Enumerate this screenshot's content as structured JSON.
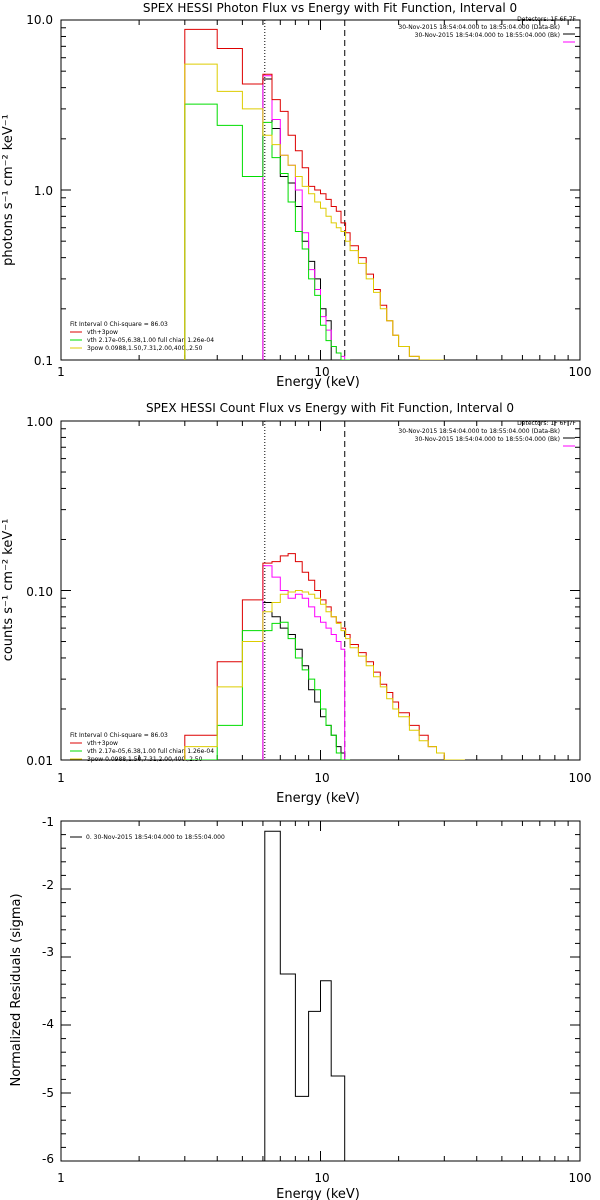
{
  "chart_data": [
    {
      "type": "line",
      "title": "SPEX HESSI Photon Flux vs Energy with Fit Function, Interval 0",
      "xlabel": "Energy (keV)",
      "ylabel": "photons s⁻¹ cm⁻² keV⁻¹",
      "xscale": "log",
      "yscale": "log",
      "xlim": [
        1,
        100
      ],
      "ylim": [
        0.1,
        10
      ],
      "xticks": [
        "1",
        "10",
        "100"
      ],
      "yticks": [
        "10.0",
        "1.0",
        "0.1"
      ],
      "vlines": [
        {
          "x": 6.1,
          "style": "dotted"
        },
        {
          "x": 12.4,
          "style": "dashed"
        }
      ],
      "legend_top": [
        {
          "text": "Detectors: 1F 6F 7F",
          "color": ""
        },
        {
          "text": "30-Nov-2015 18:54:04.000 to 18:55:04.000 (Data-Bk)",
          "color": "#000000"
        },
        {
          "text": "30-Nov-2015 18:54:04.000 to 18:55:04.000 (Bk)",
          "color": "#ff00ff"
        }
      ],
      "legend_bottom": [
        {
          "text": "Fit Interval 0   Chi-square = 86.03",
          "color": ""
        },
        {
          "text": "vth+3pow",
          "color": "#dd0000"
        },
        {
          "text": "vth 2.17e-05,6.38,1.00  full chian 1.26e-04",
          "color": "#00dd00"
        },
        {
          "text": "3pow 0.0988,1.50,7.31,2.00,400.,2.50",
          "color": "#ddcc00"
        }
      ],
      "series": [
        {
          "color": "#000000",
          "edges": [
            6.0,
            6.5,
            7.0,
            7.5,
            8.0,
            8.5,
            9.0,
            9.5,
            10.0,
            10.5,
            11.0,
            11.5,
            12.0,
            12.4
          ],
          "values": [
            4.5,
            2.3,
            1.2,
            1.1,
            0.8,
            0.5,
            0.38,
            0.3,
            0.2,
            0.17,
            0.1,
            0.1,
            0.1
          ]
        },
        {
          "color": "#ff00ff",
          "edges": [
            6.0,
            6.5,
            7.0,
            7.5,
            8.0,
            8.5,
            9.0,
            9.5,
            10.0,
            10.5,
            11.0,
            11.5,
            12.0,
            12.4
          ],
          "values": [
            4.7,
            2.6,
            1.6,
            1.4,
            1.0,
            0.56,
            0.34,
            0.26,
            0.18,
            0.15,
            0.12,
            0.11,
            0.105
          ]
        },
        {
          "color": "#dd0000",
          "edges": [
            3.0,
            4.0,
            5.0,
            6.0,
            6.5,
            7.0,
            7.5,
            8.0,
            8.5,
            9.0,
            9.5,
            10.0,
            10.5,
            11.0,
            11.5,
            12.0,
            12.5,
            13.0,
            14.0,
            15.0,
            16.0,
            17.0,
            18.0,
            19.0,
            20.0,
            22.0,
            24.0,
            26.0,
            28.0,
            30.0
          ],
          "values": [
            8.8,
            6.8,
            4.2,
            4.8,
            3.4,
            2.9,
            2.1,
            1.7,
            1.35,
            1.05,
            1.0,
            0.95,
            0.88,
            0.8,
            0.75,
            0.64,
            0.56,
            0.47,
            0.4,
            0.32,
            0.26,
            0.21,
            0.17,
            0.14,
            0.12,
            0.105,
            0.1,
            0.1,
            0.1
          ]
        },
        {
          "color": "#00dd00",
          "edges": [
            3.0,
            4.0,
            5.0,
            6.0,
            6.5,
            7.0,
            7.5,
            8.0,
            8.5,
            9.0,
            9.5,
            10.0,
            10.5,
            11.0,
            11.5,
            12.0,
            12.5,
            13.0
          ],
          "values": [
            3.2,
            2.4,
            1.2,
            2.5,
            1.55,
            1.25,
            0.85,
            0.57,
            0.45,
            0.3,
            0.24,
            0.16,
            0.13,
            0.12,
            0.11,
            0.1,
            0.1
          ]
        },
        {
          "color": "#ddcc00",
          "edges": [
            3.0,
            4.0,
            5.0,
            6.0,
            6.5,
            7.0,
            7.5,
            8.0,
            8.5,
            9.0,
            9.5,
            10.0,
            10.5,
            11.0,
            11.5,
            12.0,
            12.5,
            13.0,
            14.0,
            15.0,
            16.0,
            17.0,
            18.0,
            19.0,
            20.0,
            22.0,
            24.0,
            26.0,
            28.0,
            30.0
          ],
          "values": [
            5.5,
            3.8,
            3.0,
            2.1,
            1.85,
            1.6,
            1.4,
            1.2,
            1.05,
            0.95,
            0.85,
            0.78,
            0.7,
            0.64,
            0.6,
            0.57,
            0.5,
            0.44,
            0.37,
            0.3,
            0.25,
            0.2,
            0.17,
            0.14,
            0.12,
            0.105,
            0.1,
            0.1,
            0.1
          ]
        }
      ]
    },
    {
      "type": "line",
      "title": "SPEX HESSI Count Flux vs Energy with Fit Function, Interval 0",
      "xlabel": "Energy (keV)",
      "ylabel": "counts s⁻¹ cm⁻² keV⁻¹",
      "xscale": "log",
      "yscale": "log",
      "xlim": [
        1,
        100
      ],
      "ylim": [
        0.01,
        1
      ],
      "xticks": [
        "1",
        "10",
        "100"
      ],
      "yticks": [
        "1.00",
        "0.10",
        "0.01"
      ],
      "vlines": [
        {
          "x": 6.1,
          "style": "dotted"
        },
        {
          "x": 12.4,
          "style": "dashed"
        }
      ],
      "legend_top": [
        {
          "text": "Detectors: 1F 6F 7F",
          "color": ""
        },
        {
          "text": "30-Nov-2015 18:54:04.000 to 18:55:04.000 (Data-Bk)",
          "color": "#000000"
        },
        {
          "text": "30-Nov-2015 18:54:04.000 to 18:55:04.000 (Bk)",
          "color": "#ff00ff"
        }
      ],
      "legend_bottom": [
        {
          "text": "Fit Interval 0   Chi-square = 86.03",
          "color": ""
        },
        {
          "text": "vth+3pow",
          "color": "#dd0000"
        },
        {
          "text": "vth 2.17e-05,6.38,1.00  full chian 1.26e-04",
          "color": "#00dd00"
        },
        {
          "text": "3pow 0.0988,1.50,7.31,2.00,400.,2.50",
          "color": "#ddcc00"
        }
      ],
      "series": [
        {
          "color": "#000000",
          "edges": [
            6.0,
            6.5,
            7.0,
            7.5,
            8.0,
            8.5,
            9.0,
            9.5,
            10.0,
            10.5,
            11.0,
            11.5,
            12.0,
            12.4
          ],
          "values": [
            0.085,
            0.07,
            0.06,
            0.055,
            0.045,
            0.036,
            0.026,
            0.022,
            0.018,
            0.016,
            0.014,
            0.012,
            0.011
          ]
        },
        {
          "color": "#ff00ff",
          "edges": [
            6.0,
            6.5,
            7.0,
            7.5,
            8.0,
            8.5,
            9.0,
            9.5,
            10.0,
            10.5,
            11.0,
            11.5,
            12.0,
            12.4
          ],
          "values": [
            0.14,
            0.12,
            0.1,
            0.09,
            0.095,
            0.09,
            0.08,
            0.07,
            0.065,
            0.06,
            0.055,
            0.05,
            0.045
          ]
        },
        {
          "color": "#dd0000",
          "edges": [
            3.0,
            4.0,
            5.0,
            6.0,
            6.5,
            7.0,
            7.5,
            8.0,
            8.5,
            9.0,
            9.5,
            10.0,
            10.5,
            11.0,
            11.5,
            12.0,
            12.5,
            13.0,
            14.0,
            15.0,
            16.0,
            17.0,
            18.0,
            19.0,
            20.0,
            22.0,
            24.0,
            26.0,
            28.0,
            30.0,
            33.0,
            36.0
          ],
          "values": [
            0.014,
            0.038,
            0.088,
            0.145,
            0.148,
            0.16,
            0.165,
            0.148,
            0.128,
            0.115,
            0.1,
            0.088,
            0.08,
            0.07,
            0.065,
            0.06,
            0.055,
            0.048,
            0.043,
            0.038,
            0.033,
            0.028,
            0.025,
            0.022,
            0.019,
            0.016,
            0.014,
            0.012,
            0.011,
            0.01,
            0.01
          ]
        },
        {
          "color": "#00dd00",
          "edges": [
            3.0,
            4.0,
            5.0,
            6.0,
            6.5,
            7.0,
            7.5,
            8.0,
            8.5,
            9.0,
            9.5,
            10.0,
            10.5,
            11.0,
            11.5,
            12.0,
            12.5,
            13.0
          ],
          "values": [
            0.01,
            0.016,
            0.058,
            0.058,
            0.064,
            0.065,
            0.052,
            0.04,
            0.034,
            0.03,
            0.026,
            0.02,
            0.016,
            0.014,
            0.011,
            0.01,
            0.01
          ]
        },
        {
          "color": "#ddcc00",
          "edges": [
            3.0,
            4.0,
            5.0,
            6.0,
            6.5,
            7.0,
            7.5,
            8.0,
            8.5,
            9.0,
            9.5,
            10.0,
            10.5,
            11.0,
            11.5,
            12.0,
            12.5,
            13.0,
            14.0,
            15.0,
            16.0,
            17.0,
            18.0,
            19.0,
            20.0,
            22.0,
            24.0,
            26.0,
            28.0,
            30.0,
            33.0,
            36.0
          ],
          "values": [
            0.012,
            0.027,
            0.05,
            0.075,
            0.085,
            0.095,
            0.098,
            0.1,
            0.098,
            0.095,
            0.09,
            0.083,
            0.075,
            0.07,
            0.064,
            0.058,
            0.052,
            0.046,
            0.041,
            0.036,
            0.031,
            0.027,
            0.023,
            0.02,
            0.018,
            0.015,
            0.013,
            0.012,
            0.011,
            0.01,
            0.01
          ]
        }
      ]
    },
    {
      "type": "line",
      "title": "",
      "xlabel": "Energy (keV)",
      "ylabel": "Normalized Residuals (sigma)",
      "xscale": "log",
      "yscale": "linear",
      "xlim": [
        1,
        100
      ],
      "ylim": [
        -6,
        -1
      ],
      "xticks": [
        "1",
        "10",
        "100"
      ],
      "yticks": [
        "-1",
        "-2",
        "-3",
        "-4",
        "-5",
        "-6"
      ],
      "legend_top": [
        {
          "text": "0. 30-Nov-2015 18:54:04.000 to 18:55:04.000",
          "color": "#000000"
        }
      ],
      "series": [
        {
          "color": "#000000",
          "edges": [
            6.1,
            7.0,
            8.0,
            9.0,
            10.0,
            11.0,
            12.4
          ],
          "values": [
            -1.15,
            -3.25,
            -5.05,
            -3.8,
            -3.35,
            -4.75
          ]
        }
      ]
    }
  ]
}
